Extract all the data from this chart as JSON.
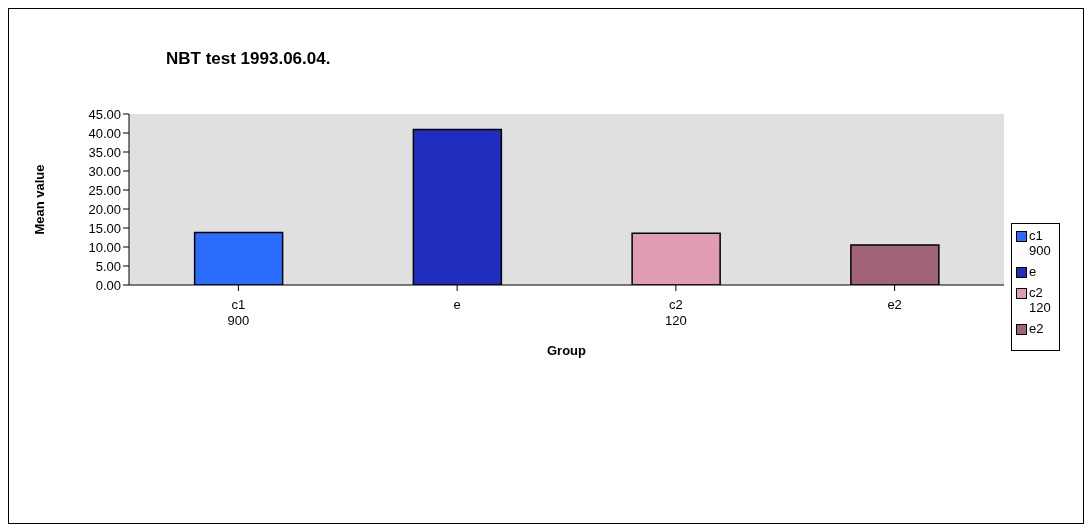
{
  "chart_data": {
    "type": "bar",
    "title": "NBT test 1993.06.04.",
    "xlabel": "Group",
    "ylabel": "Mean value",
    "categories": [
      "c1\n900",
      "e",
      "c2\n120",
      "e2"
    ],
    "stacked": true,
    "series": [
      {
        "name": "c1\n900",
        "color": "#2a6dfc",
        "values": [
          13.8,
          null,
          null,
          null
        ]
      },
      {
        "name": "e",
        "color": "#1f2ebf",
        "values": [
          null,
          40.9,
          null,
          null
        ]
      },
      {
        "name": "c2\n120",
        "color": "#e09cb4",
        "values": [
          null,
          null,
          13.6,
          null
        ]
      },
      {
        "name": "e2",
        "color": "#a06378",
        "values": [
          null,
          null,
          null,
          10.5
        ]
      }
    ],
    "ylim": [
      0,
      45
    ],
    "yticks": [
      {
        "value": 0,
        "label": "0.00"
      },
      {
        "value": 5,
        "label": "5.00"
      },
      {
        "value": 10,
        "label": "10.00"
      },
      {
        "value": 15,
        "label": "15.00"
      },
      {
        "value": 20,
        "label": "20.00"
      },
      {
        "value": 25,
        "label": "25.00"
      },
      {
        "value": 30,
        "label": "30.00"
      },
      {
        "value": 35,
        "label": "35.00"
      },
      {
        "value": 40,
        "label": "40.00"
      },
      {
        "value": 45,
        "label": "45.00"
      }
    ],
    "grid": false,
    "legend": "right"
  }
}
